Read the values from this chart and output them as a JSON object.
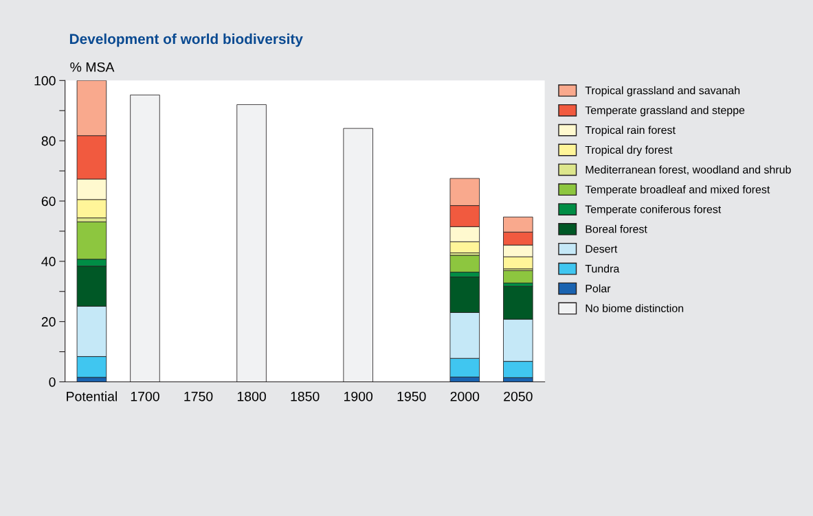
{
  "chart_data": {
    "type": "bar",
    "title": "Development of world biodiversity",
    "ylabel": "% MSA",
    "stacked": true,
    "categories": [
      "Potential",
      "1700",
      "1750",
      "1800",
      "1850",
      "1900",
      "1950",
      "2000",
      "2050"
    ],
    "ylim": [
      0,
      100
    ],
    "yticks": [
      0,
      {
        "value": 10,
        "label": null
      },
      20,
      {
        "value": 30,
        "label": null
      },
      40,
      {
        "value": 50,
        "label": null
      },
      60,
      {
        "value": 70,
        "label": null
      },
      80,
      {
        "value": 90,
        "label": null
      },
      100
    ],
    "grid": false,
    "legend": "right",
    "series": [
      {
        "name": "No biome distinction",
        "color": "#f1f2f3",
        "values": [
          null,
          95.2,
          null,
          92.0,
          null,
          84.1,
          null,
          null,
          null
        ]
      },
      {
        "name": "Polar",
        "color": "#1a63b0",
        "values": [
          1.5,
          null,
          null,
          null,
          null,
          null,
          null,
          1.6,
          1.4
        ]
      },
      {
        "name": "Tundra",
        "color": "#40c6f0",
        "values": [
          6.9,
          null,
          null,
          null,
          null,
          null,
          null,
          6.2,
          5.4
        ]
      },
      {
        "name": "Desert",
        "color": "#c5e8f7",
        "values": [
          16.7,
          null,
          null,
          null,
          null,
          null,
          null,
          15.2,
          14.0
        ]
      },
      {
        "name": "Boreal forest",
        "color": "#005826",
        "values": [
          13.3,
          null,
          null,
          null,
          null,
          null,
          null,
          11.8,
          10.9
        ]
      },
      {
        "name": "Temperate coniferous forest",
        "color": "#008d45",
        "values": [
          2.3,
          null,
          null,
          null,
          null,
          null,
          null,
          1.6,
          1.1
        ]
      },
      {
        "name": "Temperate broadleaf and mixed forest",
        "color": "#8dc63f",
        "values": [
          12.4,
          null,
          null,
          null,
          null,
          null,
          null,
          5.6,
          4.1
        ]
      },
      {
        "name": "Mediterranean forest, woodland and shrub",
        "color": "#dde68c",
        "values": [
          1.3,
          null,
          null,
          null,
          null,
          null,
          null,
          0.8,
          0.6
        ]
      },
      {
        "name": "Tropical dry forest",
        "color": "#fff599",
        "values": [
          6.1,
          null,
          null,
          null,
          null,
          null,
          null,
          3.7,
          4.0
        ]
      },
      {
        "name": "Tropical rain forest",
        "color": "#fff9cf",
        "values": [
          6.8,
          null,
          null,
          null,
          null,
          null,
          null,
          5.0,
          3.9
        ]
      },
      {
        "name": "Temperate grassland and steppe",
        "color": "#f15a3f",
        "values": [
          14.4,
          null,
          null,
          null,
          null,
          null,
          null,
          7.0,
          4.3
        ]
      },
      {
        "name": "Tropical grassland and savanah",
        "color": "#f9a98d",
        "values": [
          18.3,
          null,
          null,
          null,
          null,
          null,
          null,
          9.0,
          5.0
        ]
      }
    ]
  }
}
